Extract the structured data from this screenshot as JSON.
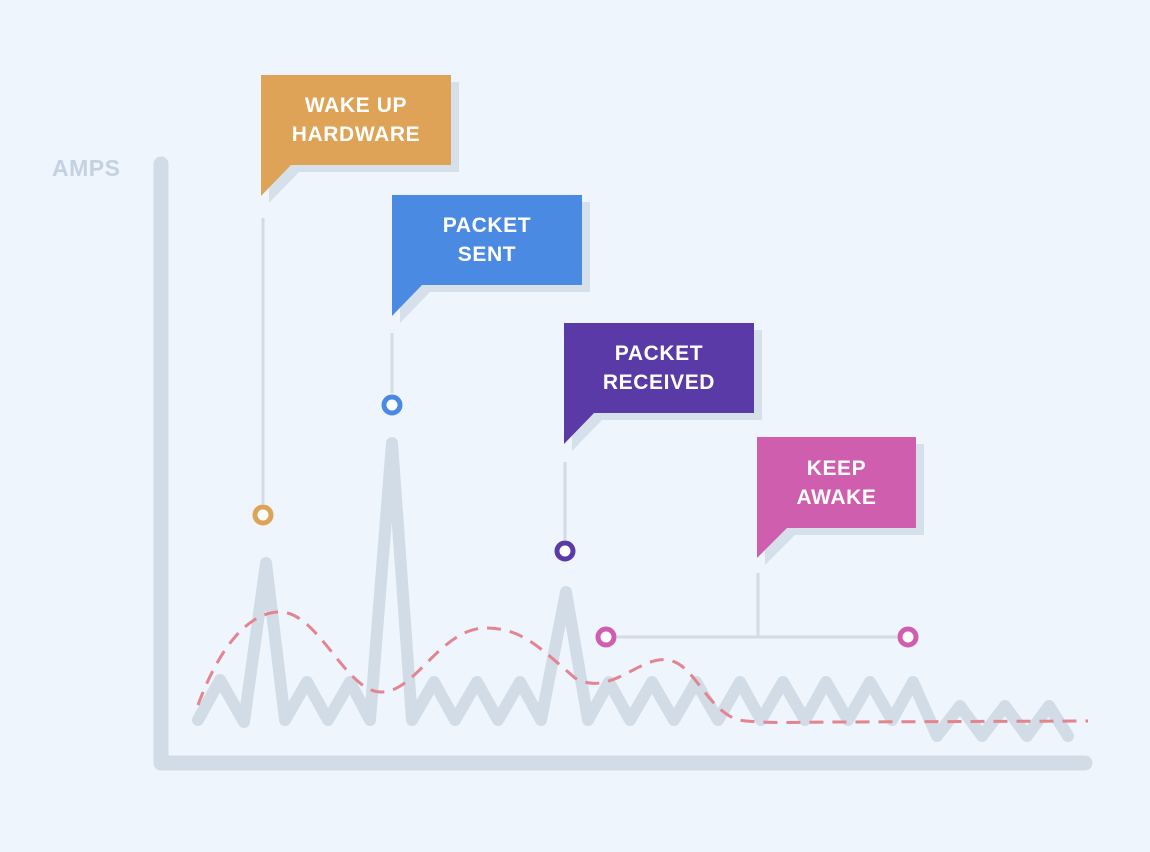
{
  "axis": {
    "y_label": "AMPS"
  },
  "colors": {
    "background": "#eff5fc",
    "axis": "#d2dce6",
    "axis_label": "#c3d1e2",
    "signal": "#d2dce6",
    "trend": "#e3848f",
    "connector": "#d2dce6",
    "shadow": "#d6e0ea"
  },
  "events": [
    {
      "id": "wake",
      "lines": [
        "WAKE UP",
        "HARDWARE"
      ],
      "color": "#dea356",
      "marker": "circle"
    },
    {
      "id": "sent",
      "lines": [
        "PACKET",
        "SENT"
      ],
      "color": "#4a8ae2",
      "marker": "circle"
    },
    {
      "id": "received",
      "lines": [
        "PACKET",
        "RECEIVED"
      ],
      "color": "#5a3aa6",
      "marker": "circle"
    },
    {
      "id": "awake",
      "lines": [
        "KEEP",
        "AWAKE"
      ],
      "color": "#cf5eaf",
      "marker": "range-bracket"
    }
  ]
}
